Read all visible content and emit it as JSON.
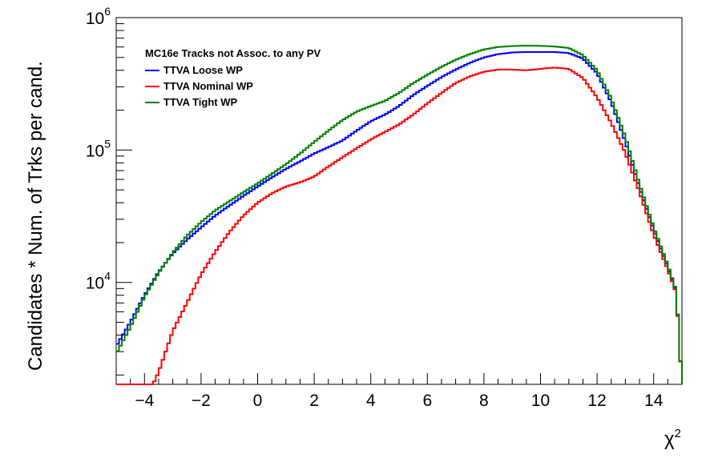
{
  "chart_data": {
    "type": "line",
    "title": "MC16e Tracks not Assoc. to any PV",
    "xlabel": "χ",
    "xlabel_sup": "2",
    "ylabel": "Candidates * Num. of Trks per cand.",
    "xlim": [
      -5,
      15
    ],
    "ylim": [
      1700,
      1000000
    ],
    "yscale": "log",
    "grid": false,
    "legend_position": "top-left",
    "x_ticks": [
      -4,
      -2,
      0,
      2,
      4,
      6,
      8,
      10,
      12,
      14
    ],
    "y_ticks": [
      {
        "value": 10000,
        "base": "10",
        "exp": "4"
      },
      {
        "value": 100000,
        "base": "10",
        "exp": "5"
      },
      {
        "value": 1000000,
        "base": "10",
        "exp": "6"
      }
    ],
    "series": [
      {
        "name": "TTVA Loose WP",
        "color": "#0000ff",
        "x": [
          -5,
          -4.5,
          -4,
          -3.5,
          -3,
          -2.5,
          -2,
          -1.5,
          -1,
          -0.5,
          0,
          0.5,
          1,
          1.5,
          2,
          2.5,
          3,
          3.5,
          4,
          4.5,
          5,
          5.5,
          6,
          6.5,
          7,
          7.5,
          8,
          8.5,
          9,
          9.5,
          10,
          10.5,
          11,
          11.5,
          12,
          12.5,
          13,
          13.5,
          14,
          14.5,
          14.8,
          15
        ],
        "y": [
          3300,
          5000,
          8000,
          12000,
          16500,
          21000,
          26000,
          32000,
          38000,
          45000,
          53000,
          62000,
          72000,
          82000,
          94000,
          105000,
          118000,
          140000,
          165000,
          185000,
          215000,
          260000,
          305000,
          355000,
          405000,
          455000,
          500000,
          530000,
          545000,
          550000,
          550000,
          550000,
          540000,
          490000,
          380000,
          230000,
          115000,
          52000,
          25000,
          13000,
          8500,
          1700
        ]
      },
      {
        "name": "TTVA Nominal WP",
        "color": "#ff0000",
        "x": [
          -5,
          -4.5,
          -4,
          -3.7,
          -3.5,
          -3,
          -2.5,
          -2,
          -1.5,
          -1,
          -0.5,
          0,
          0.5,
          1,
          1.5,
          2,
          2.5,
          3,
          3.5,
          4,
          4.5,
          5,
          5.5,
          6,
          6.5,
          7,
          7.5,
          8,
          8.5,
          9,
          9.5,
          10,
          10.5,
          11,
          11.5,
          12,
          12.5,
          13,
          13.5,
          14,
          14.5,
          14.8,
          15
        ],
        "y": [
          1700,
          1700,
          1700,
          1700,
          2100,
          4300,
          7000,
          11500,
          17000,
          24000,
          32000,
          40000,
          47000,
          53000,
          57000,
          63000,
          75000,
          88000,
          103000,
          120000,
          137000,
          156000,
          185000,
          225000,
          270000,
          320000,
          360000,
          390000,
          405000,
          405000,
          400000,
          410000,
          420000,
          410000,
          350000,
          250000,
          160000,
          95000,
          48000,
          23000,
          12500,
          8300,
          1700
        ]
      },
      {
        "name": "TTVA Tight WP",
        "color": "#008000",
        "x": [
          -5,
          -4.5,
          -4,
          -3.5,
          -3,
          -2.5,
          -2,
          -1.5,
          -1,
          -0.5,
          0,
          0.5,
          1,
          1.5,
          2,
          2.5,
          3,
          3.5,
          4,
          4.5,
          5,
          5.5,
          6,
          6.5,
          7,
          7.5,
          8,
          8.5,
          9,
          9.5,
          10,
          10.5,
          11,
          11.5,
          12,
          12.5,
          13,
          13.5,
          14,
          14.5,
          14.8,
          15
        ],
        "y": [
          2900,
          4600,
          7800,
          11800,
          16800,
          22500,
          28500,
          35000,
          41000,
          48000,
          56000,
          66000,
          78000,
          94000,
          115000,
          140000,
          168000,
          195000,
          215000,
          235000,
          270000,
          320000,
          370000,
          425000,
          480000,
          530000,
          575000,
          600000,
          610000,
          615000,
          612000,
          605000,
          590000,
          520000,
          400000,
          245000,
          125000,
          55000,
          26000,
          13500,
          8600,
          1700
        ]
      }
    ]
  }
}
